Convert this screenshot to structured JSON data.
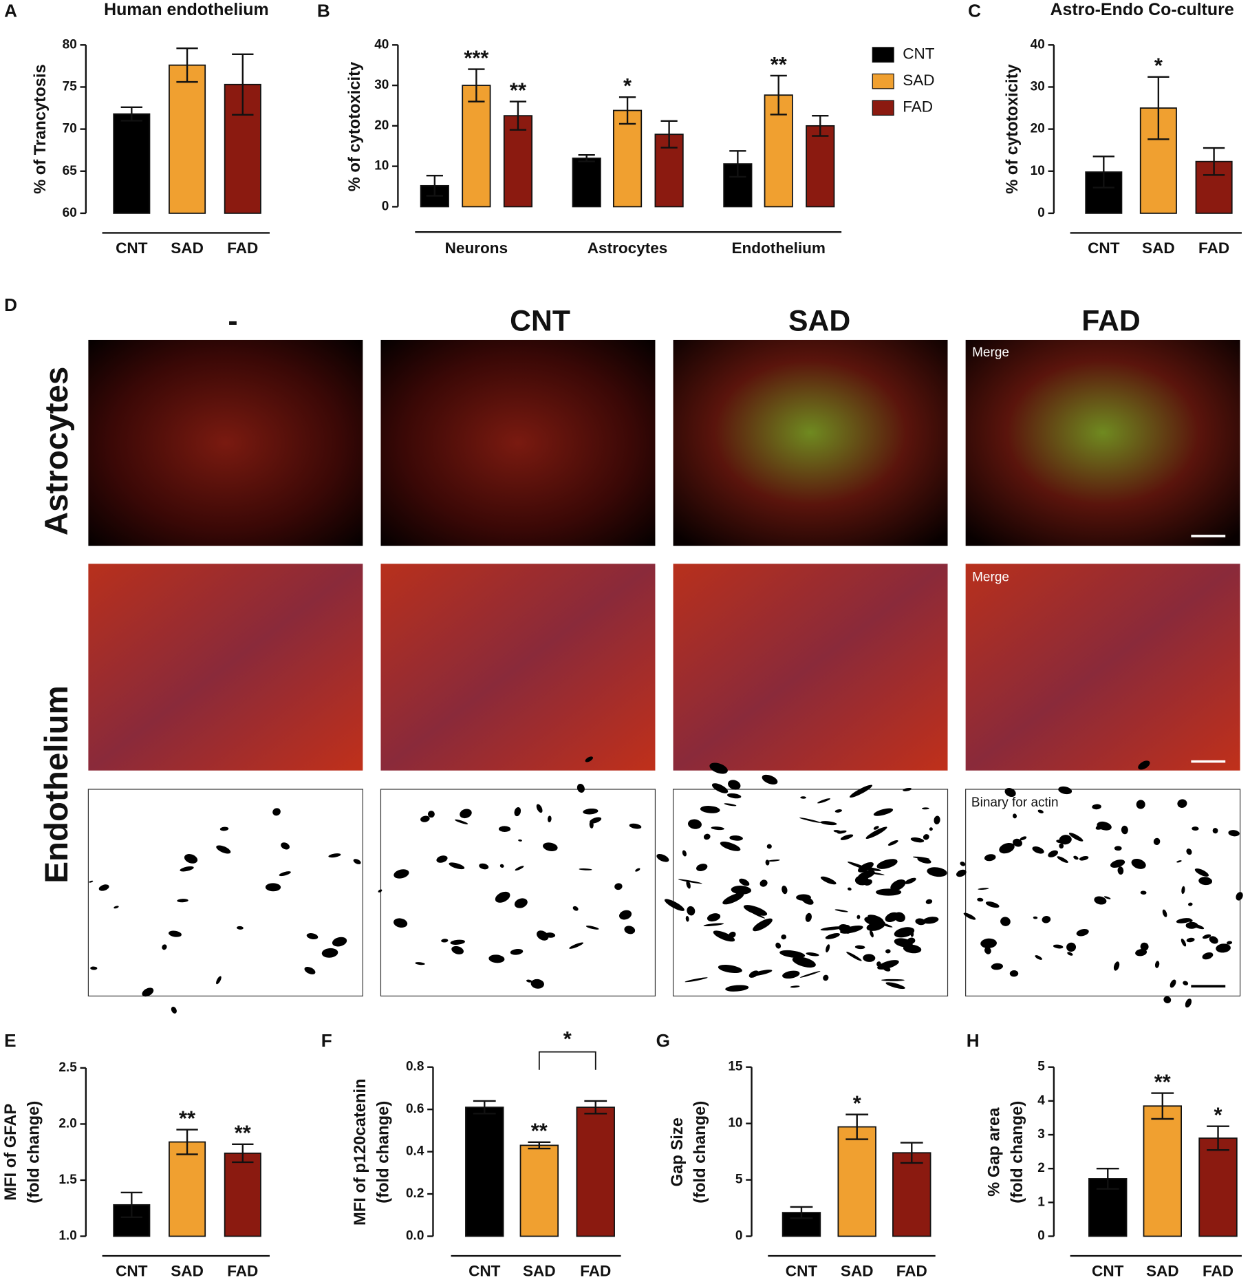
{
  "chart_data": [
    {
      "type": "bar",
      "letter": "A",
      "title": "Human endothelium",
      "ylabel": "% of Trancytosis",
      "categories": [
        "CNT",
        "SAD",
        "FAD"
      ],
      "values": [
        71.8,
        77.6,
        75.3
      ],
      "errors": [
        0.8,
        2.0,
        3.6
      ],
      "colors": [
        "#000000",
        "#f0a030",
        "#8b1a10"
      ],
      "ylim": [
        60,
        80
      ],
      "yticks": [
        60,
        65,
        70,
        75,
        80
      ]
    },
    {
      "type": "bar",
      "letter": "B",
      "ylabel": "% of cytotoxicity",
      "categories": [
        "Neurons",
        "Astrocytes",
        "Endothelium"
      ],
      "series": [
        {
          "name": "CNT",
          "color": "#000000",
          "values": [
            5.2,
            12.0,
            10.6
          ],
          "errors": [
            2.5,
            0.8,
            3.2
          ]
        },
        {
          "name": "SAD",
          "color": "#f0a030",
          "values": [
            30.0,
            23.8,
            27.6
          ],
          "errors": [
            4.0,
            3.3,
            4.8
          ],
          "significance": [
            "***",
            "*",
            "**"
          ]
        },
        {
          "name": "FAD",
          "color": "#8b1a10",
          "values": [
            22.5,
            17.9,
            20.0
          ],
          "errors": [
            3.5,
            3.3,
            2.5
          ],
          "significance": [
            "**",
            null,
            null
          ]
        }
      ],
      "ylim": [
        0,
        40
      ],
      "yticks": [
        0,
        10,
        20,
        30,
        40
      ],
      "legend": "top-right"
    },
    {
      "type": "bar",
      "letter": "C",
      "title": "Astro-Endo Co-culture",
      "ylabel": "% of cytotoxicity",
      "categories": [
        "CNT",
        "SAD",
        "FAD"
      ],
      "values": [
        9.8,
        25.0,
        12.3
      ],
      "errors": [
        3.7,
        7.4,
        3.2
      ],
      "significance": [
        null,
        "*",
        null
      ],
      "colors": [
        "#000000",
        "#f0a030",
        "#8b1a10"
      ],
      "ylim": [
        0,
        40
      ],
      "yticks": [
        0,
        10,
        20,
        30,
        40
      ]
    },
    {
      "type": "bar",
      "letter": "E",
      "ylabel": [
        "MFI of GFAP",
        "(fold change)"
      ],
      "categories": [
        "CNT",
        "SAD",
        "FAD"
      ],
      "values": [
        1.28,
        1.84,
        1.74
      ],
      "errors": [
        0.11,
        0.11,
        0.08
      ],
      "significance": [
        null,
        "**",
        "**"
      ],
      "colors": [
        "#000000",
        "#f0a030",
        "#8b1a10"
      ],
      "ylim": [
        1.0,
        2.5
      ],
      "yticks": [
        {
          "value": 1.0,
          "label": "1.0"
        },
        {
          "value": 1.5,
          "label": "1.5"
        },
        {
          "value": 2.0,
          "label": "2.0"
        },
        2.5
      ]
    },
    {
      "type": "bar",
      "letter": "F",
      "ylabel": [
        "MFI of p120catenin",
        "(fold change)"
      ],
      "categories": [
        "CNT",
        "SAD",
        "FAD"
      ],
      "values": [
        0.61,
        0.43,
        0.61
      ],
      "errors": [
        0.03,
        0.015,
        0.03
      ],
      "significance": [
        null,
        "**",
        null
      ],
      "comparison": {
        "between": [
          "SAD",
          "FAD"
        ],
        "label": "*"
      },
      "colors": [
        "#000000",
        "#f0a030",
        "#8b1a10"
      ],
      "ylim": [
        0,
        0.8
      ],
      "yticks": [
        {
          "value": 0,
          "label": "0.0"
        },
        0.2,
        0.4,
        0.6,
        0.8
      ]
    },
    {
      "type": "bar",
      "letter": "G",
      "ylabel": [
        "Gap Size",
        "(fold change)"
      ],
      "categories": [
        "CNT",
        "SAD",
        "FAD"
      ],
      "values": [
        2.1,
        9.7,
        7.4
      ],
      "errors": [
        0.5,
        1.1,
        0.9
      ],
      "significance": [
        null,
        "*",
        null
      ],
      "colors": [
        "#000000",
        "#f0a030",
        "#8b1a10"
      ],
      "ylim": [
        0,
        15
      ],
      "yticks": [
        0,
        5,
        10,
        15
      ]
    },
    {
      "type": "bar",
      "letter": "H",
      "ylabel": [
        "% Gap  area",
        "(fold change)"
      ],
      "categories": [
        "CNT",
        "SAD",
        "FAD"
      ],
      "values": [
        1.7,
        3.85,
        2.9
      ],
      "errors": [
        0.3,
        0.38,
        0.35
      ],
      "significance": [
        null,
        "**",
        "*"
      ],
      "colors": [
        "#000000",
        "#f0a030",
        "#8b1a10"
      ],
      "ylim": [
        0,
        5
      ],
      "yticks": [
        0,
        1,
        2,
        3,
        4,
        5
      ]
    }
  ],
  "panel_d": {
    "letter": "D",
    "columns": [
      "-",
      "CNT",
      "SAD",
      "FAD"
    ],
    "rows": [
      "Astrocytes",
      "Endothelium"
    ],
    "labels": [
      "Merge",
      "Merge",
      "Binary for actin"
    ]
  }
}
